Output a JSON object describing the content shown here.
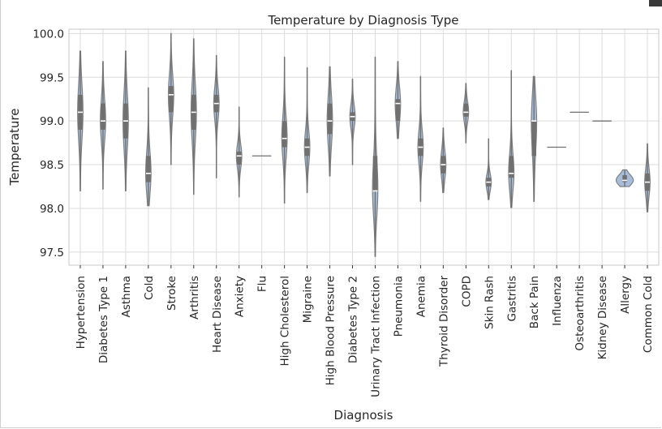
{
  "chart_data": {
    "type": "violin",
    "title": "Temperature by Diagnosis Type",
    "xlabel": "Diagnosis",
    "ylabel": "Temperature",
    "ylim": [
      97.35,
      100.05
    ],
    "yticks": [
      "97.5",
      "98.0",
      "98.5",
      "99.0",
      "99.5",
      "100.0"
    ],
    "grid": true,
    "violin_color": "#a6bddb",
    "categories": [
      "Hypertension",
      "Diabetes Type 1",
      "Asthma",
      "Cold",
      "Stroke",
      "Arthritis",
      "Heart Disease",
      "Anxiety",
      "Flu",
      "High Cholesterol",
      "Migraine",
      "High Blood Pressure",
      "Diabetes Type 2",
      "Urinary Tract Infection",
      "Pneumonia",
      "Anemia",
      "Thyroid Disorder",
      "COPD",
      "Skin Rash",
      "Gastritis",
      "Back Pain",
      "Influenza",
      "Osteoarthritis",
      "Kidney Disease",
      "Allergy",
      "Common Cold"
    ],
    "distributions": [
      {
        "min": 98.2,
        "max": 99.8,
        "q1": 98.9,
        "median": 99.1,
        "q3": 99.3
      },
      {
        "min": 98.22,
        "max": 99.68,
        "q1": 98.9,
        "median": 99.0,
        "q3": 99.2
      },
      {
        "min": 98.2,
        "max": 99.8,
        "q1": 98.8,
        "median": 99.0,
        "q3": 99.2
      },
      {
        "min": 98.03,
        "max": 99.38,
        "q1": 98.3,
        "median": 98.4,
        "q3": 98.6
      },
      {
        "min": 98.5,
        "max": 100.0,
        "q1": 99.1,
        "median": 99.3,
        "q3": 99.4
      },
      {
        "min": 98.16,
        "max": 99.94,
        "q1": 98.9,
        "median": 99.1,
        "q3": 99.3
      },
      {
        "min": 98.35,
        "max": 99.75,
        "q1": 99.1,
        "median": 99.2,
        "q3": 99.3
      },
      {
        "min": 98.13,
        "max": 99.16,
        "q1": 98.5,
        "median": 98.6,
        "q3": 98.65
      },
      {
        "min": 98.6,
        "max": 98.6,
        "q1": 98.6,
        "median": 98.6,
        "q3": 98.6
      },
      {
        "min": 98.06,
        "max": 99.73,
        "q1": 98.7,
        "median": 98.8,
        "q3": 99.0
      },
      {
        "min": 98.18,
        "max": 99.61,
        "q1": 98.6,
        "median": 98.7,
        "q3": 98.8
      },
      {
        "min": 98.37,
        "max": 99.62,
        "q1": 98.85,
        "median": 99.0,
        "q3": 99.2
      },
      {
        "min": 98.5,
        "max": 99.48,
        "q1": 99.0,
        "median": 99.05,
        "q3": 99.1
      },
      {
        "min": 97.45,
        "max": 99.73,
        "q1": 98.2,
        "median": 98.2,
        "q3": 98.6
      },
      {
        "min": 98.8,
        "max": 99.68,
        "q1": 99.0,
        "median": 99.2,
        "q3": 99.25
      },
      {
        "min": 98.08,
        "max": 99.51,
        "q1": 98.6,
        "median": 98.7,
        "q3": 98.8
      },
      {
        "min": 98.18,
        "max": 98.92,
        "q1": 98.4,
        "median": 98.5,
        "q3": 98.6
      },
      {
        "min": 98.75,
        "max": 99.43,
        "q1": 99.05,
        "median": 99.1,
        "q3": 99.2
      },
      {
        "min": 98.1,
        "max": 98.8,
        "q1": 98.25,
        "median": 98.3,
        "q3": 98.35
      },
      {
        "min": 98.01,
        "max": 99.58,
        "q1": 98.35,
        "median": 98.4,
        "q3": 98.6
      },
      {
        "min": 98.08,
        "max": 99.51,
        "q1": 98.6,
        "median": 99.0,
        "q3": 99.0
      },
      {
        "min": 98.7,
        "max": 98.7,
        "q1": 98.7,
        "median": 98.7,
        "q3": 98.7
      },
      {
        "min": 99.1,
        "max": 99.1,
        "q1": 99.1,
        "median": 99.1,
        "q3": 99.1
      },
      {
        "min": 99.0,
        "max": 99.0,
        "q1": 99.0,
        "median": 99.0,
        "q3": 99.0
      },
      {
        "min": 98.25,
        "max": 98.44,
        "q1": 98.3,
        "median": 98.32,
        "q3": 98.38
      },
      {
        "min": 97.96,
        "max": 98.74,
        "q1": 98.2,
        "median": 98.3,
        "q3": 98.4
      }
    ]
  }
}
